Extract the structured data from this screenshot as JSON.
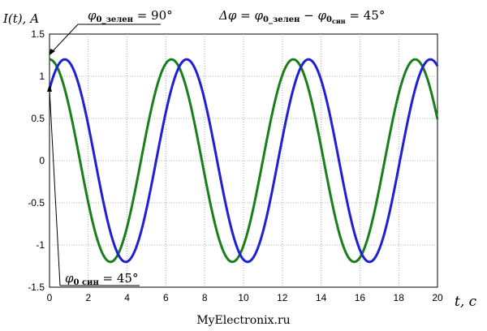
{
  "chart_data": {
    "type": "line",
    "ylabel": "I(t), A",
    "xlabel": "t, c",
    "xlim": [
      0,
      20
    ],
    "ylim": [
      -1.5,
      1.5
    ],
    "xticks": [
      "0",
      "2",
      "4",
      "6",
      "8",
      "10",
      "12",
      "14",
      "16",
      "18",
      "20"
    ],
    "yticks": [
      "1.5",
      "1",
      "0.5",
      "0",
      "-0.5",
      "-1",
      "-1.5"
    ],
    "grid": true,
    "amplitude": 1.2,
    "angular_frequency": 1.0,
    "series": [
      {
        "phase_deg": 90,
        "color": "#1a7f1a"
      },
      {
        "phase_deg": 45,
        "color": "#1f1fd6"
      }
    ],
    "annotations": {
      "green_phase": {
        "symbol": "φ",
        "subscript": "0_зелен",
        "value": " = 90°"
      },
      "blue_phase": {
        "symbol": "φ",
        "subscript": "0 син",
        "value": " = 45°"
      },
      "delta": {
        "symbol": "Δφ = φ",
        "sub1": "0_зелен",
        "mid": " − φ",
        "sub2": "0",
        "sub3": "син",
        "value": " = 45°"
      }
    }
  },
  "caption": "MyElectronix.ru"
}
